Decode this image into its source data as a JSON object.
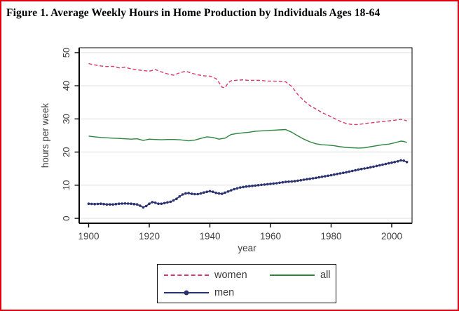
{
  "title": "Figure 1. Average Weekly Hours in Home Production by Individuals Ages 18-64",
  "colors": {
    "frame": "#e1000f",
    "women": "#d6386e",
    "all": "#2e8540",
    "men": "#2b3270",
    "grid": "#dcdcdc",
    "axis": "#000000",
    "text": "#3d3d3d"
  },
  "legend": {
    "items": [
      {
        "label": "women",
        "style": "dashed"
      },
      {
        "label": "all",
        "style": "solid"
      },
      {
        "label": "men",
        "style": "solid-markers"
      }
    ]
  },
  "chart_data": {
    "type": "line",
    "title": "",
    "xlabel": "year",
    "ylabel": "hours per week",
    "xlim": [
      1897,
      2007
    ],
    "ylim": [
      0,
      50
    ],
    "x_ticks": [
      1900,
      1920,
      1940,
      1960,
      1980,
      2000
    ],
    "y_ticks": [
      0,
      10,
      20,
      30,
      40,
      50
    ],
    "grid": true,
    "legend_position": "bottom-center",
    "series": [
      {
        "name": "women",
        "style": "dashed",
        "color_key": "women",
        "points": [
          [
            1900,
            46.7
          ],
          [
            1902,
            46.3
          ],
          [
            1904,
            46.0
          ],
          [
            1906,
            45.8
          ],
          [
            1908,
            45.9
          ],
          [
            1910,
            45.4
          ],
          [
            1912,
            45.6
          ],
          [
            1914,
            45.1
          ],
          [
            1916,
            44.8
          ],
          [
            1918,
            44.6
          ],
          [
            1920,
            44.4
          ],
          [
            1922,
            44.9
          ],
          [
            1924,
            44.2
          ],
          [
            1926,
            43.6
          ],
          [
            1928,
            43.2
          ],
          [
            1930,
            43.9
          ],
          [
            1932,
            44.4
          ],
          [
            1934,
            43.8
          ],
          [
            1936,
            43.3
          ],
          [
            1938,
            43.0
          ],
          [
            1940,
            42.9
          ],
          [
            1942,
            42.2
          ],
          [
            1943,
            41.0
          ],
          [
            1944,
            39.6
          ],
          [
            1945,
            39.4
          ],
          [
            1946,
            40.9
          ],
          [
            1947,
            41.5
          ],
          [
            1949,
            41.7
          ],
          [
            1951,
            41.8
          ],
          [
            1953,
            41.6
          ],
          [
            1955,
            41.7
          ],
          [
            1957,
            41.6
          ],
          [
            1959,
            41.4
          ],
          [
            1961,
            41.4
          ],
          [
            1963,
            41.3
          ],
          [
            1965,
            41.2
          ],
          [
            1967,
            39.8
          ],
          [
            1969,
            37.4
          ],
          [
            1971,
            35.5
          ],
          [
            1973,
            34.0
          ],
          [
            1975,
            33.0
          ],
          [
            1977,
            31.9
          ],
          [
            1979,
            31.1
          ],
          [
            1981,
            30.2
          ],
          [
            1983,
            29.3
          ],
          [
            1985,
            28.6
          ],
          [
            1987,
            28.3
          ],
          [
            1989,
            28.3
          ],
          [
            1991,
            28.6
          ],
          [
            1993,
            28.8
          ],
          [
            1995,
            29.0
          ],
          [
            1997,
            29.2
          ],
          [
            1999,
            29.4
          ],
          [
            2001,
            29.6
          ],
          [
            2003,
            29.9
          ],
          [
            2004,
            29.7
          ],
          [
            2005,
            29.4
          ]
        ]
      },
      {
        "name": "all",
        "style": "solid",
        "color_key": "all",
        "points": [
          [
            1900,
            24.8
          ],
          [
            1902,
            24.6
          ],
          [
            1904,
            24.4
          ],
          [
            1906,
            24.3
          ],
          [
            1908,
            24.2
          ],
          [
            1910,
            24.1
          ],
          [
            1912,
            24.0
          ],
          [
            1914,
            23.9
          ],
          [
            1916,
            24.0
          ],
          [
            1918,
            23.5
          ],
          [
            1920,
            23.9
          ],
          [
            1922,
            23.8
          ],
          [
            1924,
            23.7
          ],
          [
            1926,
            23.8
          ],
          [
            1928,
            23.8
          ],
          [
            1930,
            23.7
          ],
          [
            1932,
            23.5
          ],
          [
            1933,
            23.4
          ],
          [
            1935,
            23.6
          ],
          [
            1937,
            24.1
          ],
          [
            1939,
            24.6
          ],
          [
            1941,
            24.4
          ],
          [
            1943,
            23.9
          ],
          [
            1945,
            24.2
          ],
          [
            1947,
            25.3
          ],
          [
            1949,
            25.6
          ],
          [
            1951,
            25.8
          ],
          [
            1953,
            26.0
          ],
          [
            1955,
            26.3
          ],
          [
            1957,
            26.4
          ],
          [
            1959,
            26.5
          ],
          [
            1961,
            26.6
          ],
          [
            1963,
            26.7
          ],
          [
            1965,
            26.8
          ],
          [
            1967,
            26.0
          ],
          [
            1969,
            24.9
          ],
          [
            1971,
            23.9
          ],
          [
            1973,
            23.1
          ],
          [
            1975,
            22.5
          ],
          [
            1977,
            22.2
          ],
          [
            1979,
            22.1
          ],
          [
            1981,
            21.9
          ],
          [
            1983,
            21.6
          ],
          [
            1985,
            21.4
          ],
          [
            1987,
            21.3
          ],
          [
            1989,
            21.2
          ],
          [
            1991,
            21.3
          ],
          [
            1993,
            21.6
          ],
          [
            1995,
            21.9
          ],
          [
            1997,
            22.2
          ],
          [
            1999,
            22.4
          ],
          [
            2001,
            22.8
          ],
          [
            2003,
            23.3
          ],
          [
            2004,
            23.2
          ],
          [
            2005,
            22.9
          ]
        ]
      },
      {
        "name": "men",
        "style": "solid-markers",
        "color_key": "men",
        "points": [
          [
            1900,
            4.4
          ],
          [
            1902,
            4.3
          ],
          [
            1904,
            4.4
          ],
          [
            1906,
            4.2
          ],
          [
            1908,
            4.2
          ],
          [
            1910,
            4.4
          ],
          [
            1912,
            4.5
          ],
          [
            1914,
            4.4
          ],
          [
            1916,
            4.2
          ],
          [
            1917,
            3.8
          ],
          [
            1918,
            3.3
          ],
          [
            1919,
            3.7
          ],
          [
            1920,
            4.4
          ],
          [
            1921,
            4.9
          ],
          [
            1922,
            4.7
          ],
          [
            1923,
            4.4
          ],
          [
            1924,
            4.4
          ],
          [
            1925,
            4.6
          ],
          [
            1926,
            4.8
          ],
          [
            1927,
            5.0
          ],
          [
            1928,
            5.4
          ],
          [
            1929,
            5.9
          ],
          [
            1930,
            6.6
          ],
          [
            1931,
            7.2
          ],
          [
            1932,
            7.5
          ],
          [
            1933,
            7.6
          ],
          [
            1934,
            7.4
          ],
          [
            1935,
            7.3
          ],
          [
            1936,
            7.3
          ],
          [
            1937,
            7.5
          ],
          [
            1938,
            7.8
          ],
          [
            1939,
            8.0
          ],
          [
            1940,
            8.2
          ],
          [
            1941,
            8.0
          ],
          [
            1942,
            7.7
          ],
          [
            1943,
            7.5
          ],
          [
            1944,
            7.4
          ],
          [
            1946,
            8.1
          ],
          [
            1948,
            8.8
          ],
          [
            1950,
            9.3
          ],
          [
            1952,
            9.6
          ],
          [
            1955,
            9.9
          ],
          [
            1958,
            10.2
          ],
          [
            1960,
            10.4
          ],
          [
            1962,
            10.6
          ],
          [
            1965,
            11.0
          ],
          [
            1968,
            11.2
          ],
          [
            1970,
            11.5
          ],
          [
            1972,
            11.8
          ],
          [
            1975,
            12.2
          ],
          [
            1978,
            12.7
          ],
          [
            1980,
            13.0
          ],
          [
            1982,
            13.4
          ],
          [
            1985,
            13.9
          ],
          [
            1988,
            14.5
          ],
          [
            1990,
            14.9
          ],
          [
            1992,
            15.2
          ],
          [
            1995,
            15.8
          ],
          [
            1998,
            16.4
          ],
          [
            2000,
            16.8
          ],
          [
            2002,
            17.2
          ],
          [
            2003,
            17.5
          ],
          [
            2004,
            17.4
          ],
          [
            2005,
            17.0
          ]
        ]
      }
    ]
  }
}
